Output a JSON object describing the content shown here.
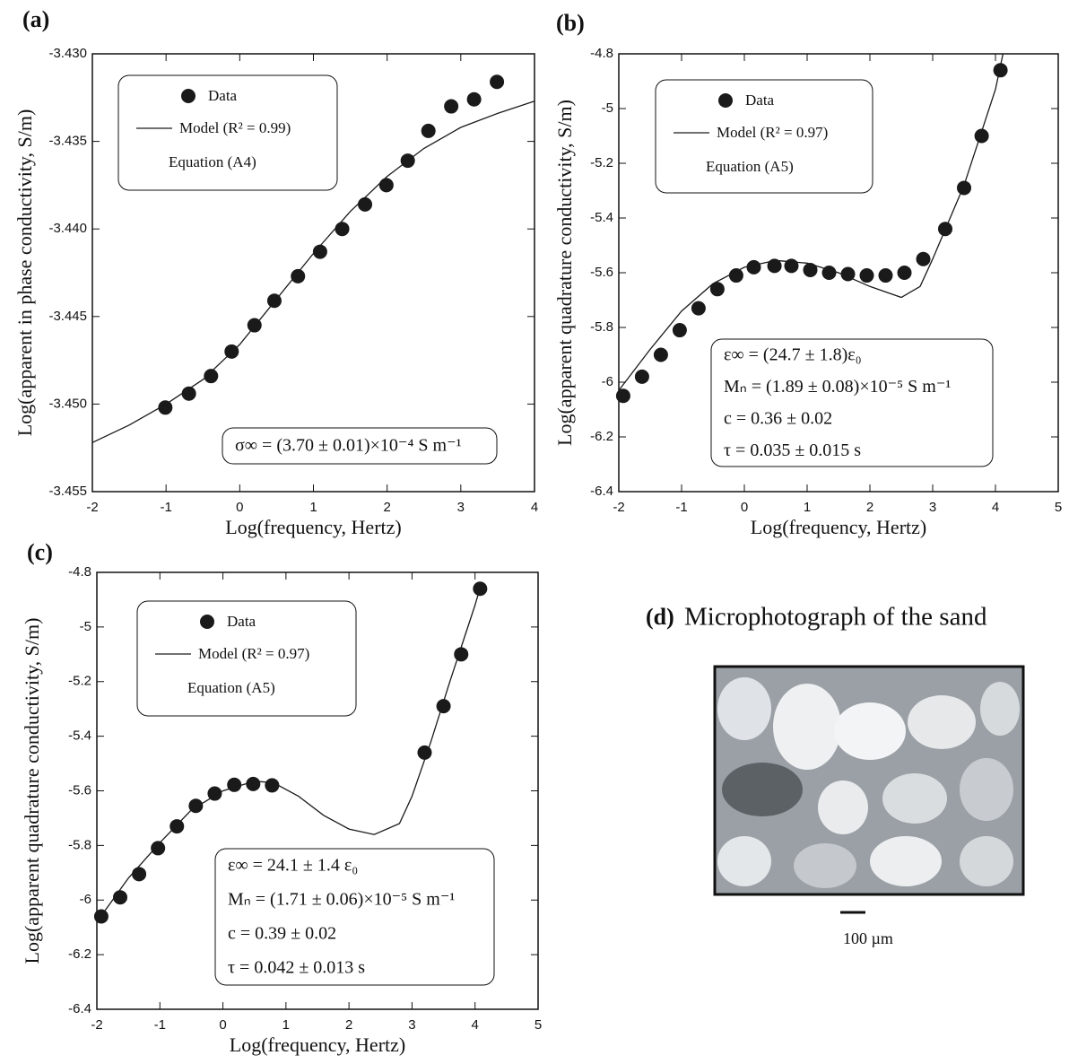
{
  "chart_data": [
    {
      "type": "scatter",
      "panel_label": "(a)",
      "x_label": "Log(frequency, Hertz)",
      "y_label": "Log(apparent in phase conductivity, S/m)",
      "xlim": [
        -2,
        4
      ],
      "xticks": [
        -2,
        -1,
        0,
        1,
        2,
        3,
        4
      ],
      "ylim": [
        -3.455,
        -3.43
      ],
      "yticks": [
        {
          "value": -3.43,
          "label": "-3.430"
        },
        -3.435,
        {
          "value": -3.44,
          "label": "-3.440"
        },
        -3.445,
        {
          "value": -3.45,
          "label": "-3.450"
        },
        -3.455
      ],
      "series": [
        {
          "name": "Data",
          "style": "markers",
          "color": "#1a1a1a",
          "x": [
            -1.01,
            -0.69,
            -0.39,
            -0.11,
            0.2,
            0.47,
            0.79,
            1.09,
            1.39,
            1.7,
            1.99,
            2.28,
            2.56,
            2.87,
            3.18,
            3.49
          ],
          "values": [
            -3.4502,
            -3.4494,
            -3.4484,
            -3.447,
            -3.4455,
            -3.4441,
            -3.4427,
            -3.4413,
            -3.44,
            -3.4386,
            -3.4375,
            -3.4361,
            -3.4344,
            -3.433,
            -3.4326,
            -3.4316
          ]
        },
        {
          "name": "Model (R² = 0.99)",
          "style": "line",
          "color": "#1a1a1a",
          "x": [
            -2,
            -1.5,
            -1,
            -0.5,
            0,
            0.5,
            1,
            1.5,
            2,
            2.5,
            3,
            3.5,
            4
          ],
          "values": [
            -3.4522,
            -3.4512,
            -3.45,
            -3.4486,
            -3.4466,
            -3.444,
            -3.4414,
            -3.439,
            -3.437,
            -3.4354,
            -3.4342,
            -3.4334,
            -3.4327
          ]
        }
      ],
      "legend_note": "Equation (A4)",
      "annotations": [
        "σ∞ = (3.70 ± 0.01)×10⁻⁴ S m⁻¹"
      ]
    },
    {
      "type": "scatter",
      "panel_label": "(b)",
      "x_label": "Log(frequency, Hertz)",
      "y_label": "Log(apparent quadrature conductivity, S/m)",
      "xlim": [
        -2,
        5
      ],
      "xticks": [
        -2,
        -1,
        0,
        1,
        2,
        3,
        4,
        5
      ],
      "ylim": [
        -6.4,
        -4.8
      ],
      "yticks": [
        -4.8,
        -5,
        -5.2,
        -5.4,
        -5.6,
        -5.8,
        -6,
        -6.2,
        -6.4
      ],
      "series": [
        {
          "name": "Data",
          "style": "markers",
          "color": "#1a1a1a",
          "x": [
            -1.93,
            -1.63,
            -1.33,
            -1.03,
            -0.73,
            -0.43,
            -0.13,
            0.15,
            0.48,
            0.75,
            1.05,
            1.35,
            1.65,
            1.95,
            2.25,
            2.55,
            2.85,
            3.2,
            3.5,
            3.78,
            4.08
          ],
          "values": [
            -6.05,
            -5.98,
            -5.9,
            -5.81,
            -5.73,
            -5.66,
            -5.61,
            -5.58,
            -5.575,
            -5.575,
            -5.59,
            -5.6,
            -5.605,
            -5.61,
            -5.61,
            -5.6,
            -5.55,
            -5.44,
            -5.29,
            -5.1,
            -4.86
          ]
        },
        {
          "name": "Model (R² = 0.97)",
          "style": "line",
          "color": "#1a1a1a",
          "x": [
            -2,
            -1.5,
            -1,
            -0.5,
            0,
            0.5,
            1,
            1.5,
            2,
            2.5,
            2.8,
            3,
            3.5,
            4,
            4.12
          ],
          "values": [
            -6.03,
            -5.88,
            -5.74,
            -5.64,
            -5.58,
            -5.555,
            -5.565,
            -5.6,
            -5.65,
            -5.69,
            -5.65,
            -5.55,
            -5.28,
            -4.93,
            -4.8
          ]
        }
      ],
      "legend_note": "Equation (A5)",
      "annotations": [
        "ε∞ = (24.7 ± 1.8)ε₀",
        "Mₙ = (1.89 ± 0.08)×10⁻⁵ S m⁻¹",
        "c = 0.36 ± 0.02",
        "τ = 0.035 ± 0.015 s"
      ]
    },
    {
      "type": "scatter",
      "panel_label": "(c)",
      "x_label": "Log(frequency, Hertz)",
      "y_label": "Log(apparent quadrature conductivity, S/m)",
      "xlim": [
        -2,
        5
      ],
      "xticks": [
        -2,
        -1,
        0,
        1,
        2,
        3,
        4,
        5
      ],
      "ylim": [
        -6.4,
        -4.8
      ],
      "yticks": [
        -4.8,
        -5,
        -5.2,
        -5.4,
        -5.6,
        -5.8,
        -6,
        -6.2,
        -6.4
      ],
      "series": [
        {
          "name": "Data",
          "style": "markers",
          "color": "#1a1a1a",
          "x": [
            -1.93,
            -1.63,
            -1.33,
            -1.03,
            -0.73,
            -0.43,
            -0.13,
            0.18,
            0.48,
            0.78,
            3.2,
            3.5,
            3.78,
            4.08
          ],
          "values": [
            -6.06,
            -5.99,
            -5.905,
            -5.81,
            -5.73,
            -5.655,
            -5.61,
            -5.578,
            -5.575,
            -5.58,
            -5.46,
            -5.29,
            -5.1,
            -4.86
          ]
        },
        {
          "name": "Model (R² = 0.97)",
          "style": "line",
          "color": "#1a1a1a",
          "x": [
            -2,
            -1.5,
            -1,
            -0.5,
            0,
            0.5,
            0.8,
            1.2,
            1.6,
            2,
            2.4,
            2.8,
            3,
            3.3,
            3.6,
            4,
            4.1
          ],
          "values": [
            -6.08,
            -5.92,
            -5.79,
            -5.67,
            -5.6,
            -5.565,
            -5.57,
            -5.62,
            -5.69,
            -5.74,
            -5.76,
            -5.72,
            -5.62,
            -5.42,
            -5.2,
            -4.92,
            -4.84
          ]
        }
      ],
      "legend_note": "Equation (A5)",
      "annotations": [
        "ε∞ = 24.1 ± 1.4 ε₀",
        "Mₙ = (1.71 ± 0.06)×10⁻⁵ S m⁻¹",
        "c = 0.39 ± 0.02",
        "τ = 0.042 ± 0.013 s"
      ]
    }
  ],
  "photo_panel": {
    "label": "(d)",
    "title": "Microphotograph of the sand",
    "scale_label": "100 µm"
  }
}
